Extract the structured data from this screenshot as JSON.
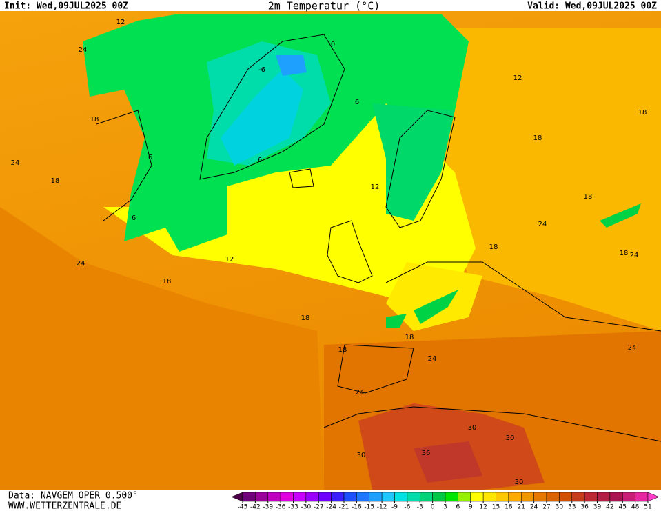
{
  "header": {
    "init": "Init: Wed,09JUL2025 00Z",
    "title": "2m Temperatur (°C)",
    "valid": "Valid: Wed,09JUL2025 00Z"
  },
  "footer": {
    "data": "Data: NAVGEM OPER 0.500°",
    "site": "WWW.WETTERZENTRALE.DE"
  },
  "legend": {
    "ticks": [
      -45,
      -42,
      -39,
      -36,
      -33,
      -30,
      -27,
      -24,
      -21,
      -18,
      -15,
      -12,
      -9,
      -6,
      -3,
      0,
      3,
      6,
      9,
      12,
      15,
      18,
      21,
      24,
      27,
      30,
      33,
      36,
      39,
      42,
      45,
      48,
      51
    ],
    "colors": [
      "#4d0047",
      "#70007a",
      "#9a009a",
      "#c000c0",
      "#e000e0",
      "#c800ff",
      "#9b00ff",
      "#6e00ff",
      "#3c1eff",
      "#1e50ff",
      "#1e78ff",
      "#1ea0ff",
      "#1ec8ff",
      "#00e1e1",
      "#00dcaa",
      "#00d278",
      "#00c846",
      "#00e600",
      "#96f000",
      "#ffff00",
      "#ffe600",
      "#ffc800",
      "#ffaa00",
      "#f09600",
      "#e67800",
      "#dc6400",
      "#d25000",
      "#c83c1e",
      "#be2832",
      "#b41e46",
      "#aa1450",
      "#c81e78",
      "#e628a0",
      "#ff3cc8"
    ]
  },
  "isotherm_labels": [
    12,
    24,
    18,
    24,
    18,
    24,
    18,
    12,
    18,
    6,
    6,
    -6,
    0,
    6,
    6,
    12,
    12,
    18,
    18,
    18,
    24,
    18,
    18,
    24,
    18,
    24,
    24,
    18,
    30,
    30,
    30,
    36,
    30,
    24
  ]
}
